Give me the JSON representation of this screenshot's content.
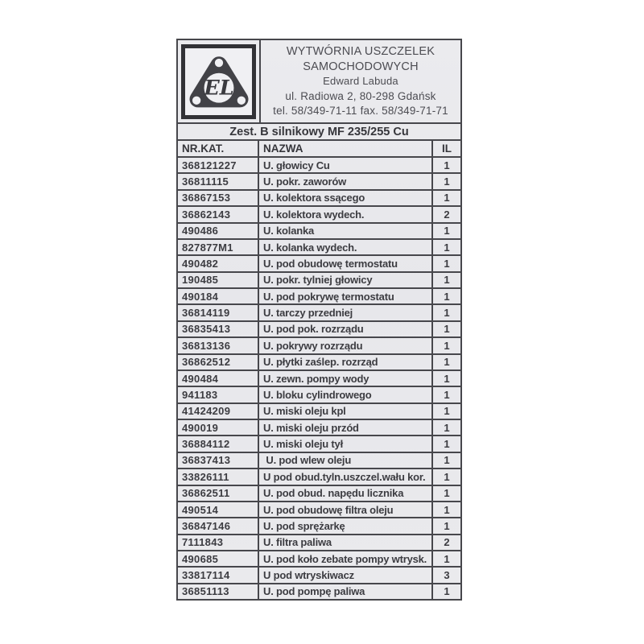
{
  "colors": {
    "paper": "#e9e9ec",
    "border": "#47474c",
    "text": "#3c3c41",
    "page_background": "#ffffff"
  },
  "header": {
    "logo": {
      "icon": "gasket-logo-icon",
      "monogram": "EL"
    },
    "company_lines": [
      "WYTWÓRNIA USZCZELEK",
      "SAMOCHODOWYCH",
      "Edward Labuda",
      "ul. Radiowa 2, 80-298 Gdańsk",
      "tel. 58/349-71-11 fax. 58/349-71-71"
    ]
  },
  "subtitle": "Zest. B silnikowy MF 235/255 Cu",
  "table": {
    "columns": [
      "NR.KAT.",
      "NAZWA",
      "IL"
    ],
    "rows": [
      {
        "nr": "368121227",
        "nazwa": "U. głowicy Cu",
        "il": "1"
      },
      {
        "nr": "36811115",
        "nazwa": "U. pokr. zaworów",
        "il": "1"
      },
      {
        "nr": "36867153",
        "nazwa": "U. kolektora ssącego",
        "il": "1"
      },
      {
        "nr": "36862143",
        "nazwa": "U. kolektora wydech.",
        "il": "2"
      },
      {
        "nr": "490486",
        "nazwa": "U. kolanka",
        "il": "1"
      },
      {
        "nr": "827877M1",
        "nazwa": "U. kolanka wydech.",
        "il": "1"
      },
      {
        "nr": "490482",
        "nazwa": "U. pod obudowę termostatu",
        "il": "1"
      },
      {
        "nr": "190485",
        "nazwa": "U. pokr. tylniej głowicy",
        "il": "1"
      },
      {
        "nr": "490184",
        "nazwa": "U. pod pokrywę termostatu",
        "il": "1"
      },
      {
        "nr": "36814119",
        "nazwa": "U. tarczy przedniej",
        "il": "1"
      },
      {
        "nr": "36835413",
        "nazwa": "U. pod pok. rozrządu",
        "il": "1"
      },
      {
        "nr": "36813136",
        "nazwa": "U. pokrywy rozrządu",
        "il": "1"
      },
      {
        "nr": "36862512",
        "nazwa": "U. płytki zaślep. rozrząd",
        "il": "1"
      },
      {
        "nr": "490484",
        "nazwa": "U. zewn. pompy wody",
        "il": "1"
      },
      {
        "nr": "941183",
        "nazwa": "U. bloku cylindrowego",
        "il": "1"
      },
      {
        "nr": "41424209",
        "nazwa": "U. miski oleju kpl",
        "il": "1"
      },
      {
        "nr": "490019",
        "nazwa": "U. miski oleju przód",
        "il": "1"
      },
      {
        "nr": "36884112",
        "nazwa": "U. miski oleju tył",
        "il": "1"
      },
      {
        "nr": "36837413",
        "nazwa": " U. pod wlew oleju",
        "il": "1"
      },
      {
        "nr": "33826111",
        "nazwa": "U pod obud.tyln.uszczel.wału kor.",
        "il": "1"
      },
      {
        "nr": "36862511",
        "nazwa": "U. pod obud. napędu licznika",
        "il": "1"
      },
      {
        "nr": "490514",
        "nazwa": "U. pod obudowę filtra oleju",
        "il": "1"
      },
      {
        "nr": "36847146",
        "nazwa": "U. pod sprężarkę",
        "il": "1"
      },
      {
        "nr": "7111843",
        "nazwa": "U. filtra paliwa",
        "il": "2"
      },
      {
        "nr": "490685",
        "nazwa": "U. pod koło zebate pompy wtrysk.",
        "il": "1"
      },
      {
        "nr": "33817114",
        "nazwa": "U pod wtryskiwacz",
        "il": "3"
      },
      {
        "nr": "36851113",
        "nazwa": "U. pod pompę paliwa",
        "il": "1"
      }
    ]
  }
}
